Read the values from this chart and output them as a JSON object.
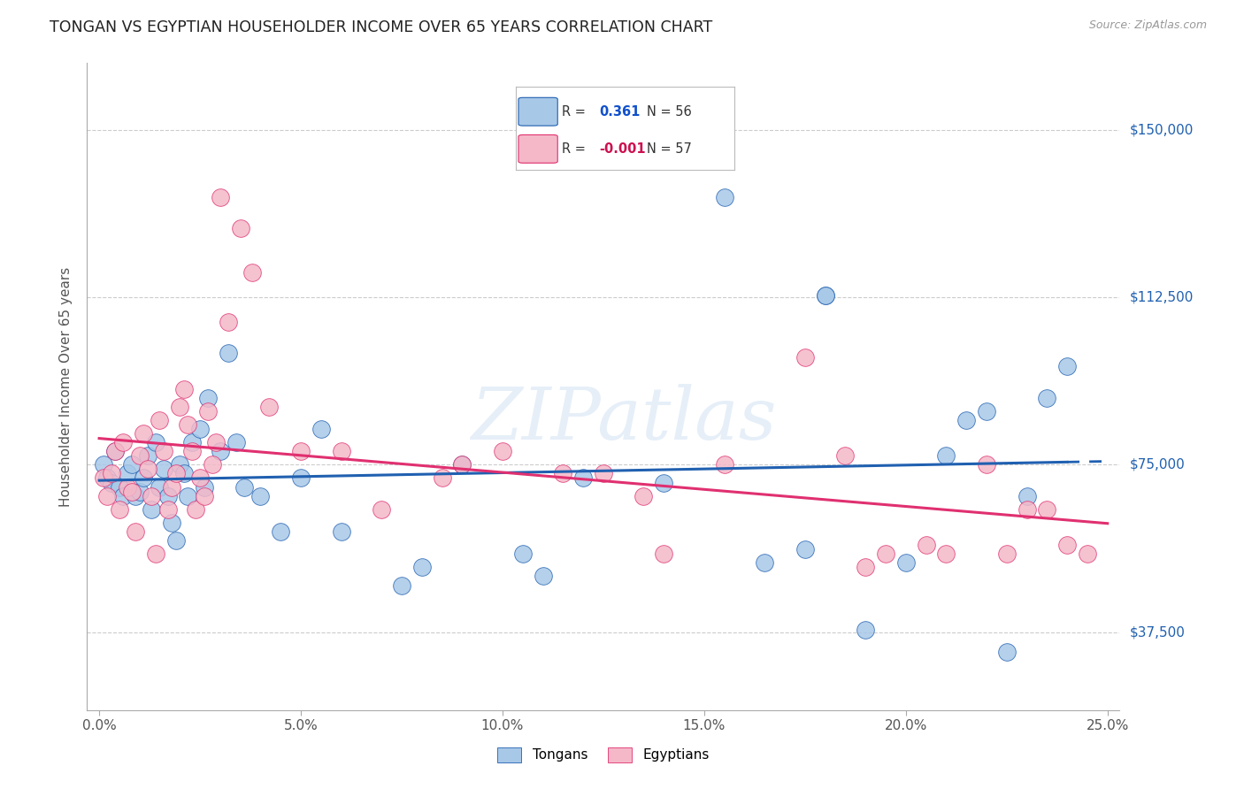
{
  "title": "TONGAN VS EGYPTIAN HOUSEHOLDER INCOME OVER 65 YEARS CORRELATION CHART",
  "source": "Source: ZipAtlas.com",
  "ylabel": "Householder Income Over 65 years",
  "xlabel_ticks": [
    "0.0%",
    "5.0%",
    "10.0%",
    "15.0%",
    "20.0%",
    "25.0%"
  ],
  "xlabel_vals": [
    0.0,
    5.0,
    10.0,
    15.0,
    20.0,
    25.0
  ],
  "ylim": [
    20000,
    165000
  ],
  "xlim": [
    -0.3,
    25.3
  ],
  "yticks": [
    37500,
    75000,
    112500,
    150000
  ],
  "ytick_labels": [
    "$37,500",
    "$75,000",
    "$112,500",
    "$150,000"
  ],
  "tongan_R": "0.361",
  "tongan_N": "56",
  "egyptian_R": "-0.001",
  "egyptian_N": "57",
  "blue_color": "#A8C8E8",
  "pink_color": "#F4B8C8",
  "blue_line_color": "#2060B0",
  "pink_line_color": "#E03070",
  "watermark": "ZIPatlas",
  "tongan_x": [
    0.1,
    0.2,
    0.3,
    0.4,
    0.5,
    0.6,
    0.7,
    0.8,
    0.9,
    1.0,
    1.1,
    1.2,
    1.3,
    1.4,
    1.5,
    1.6,
    1.7,
    1.8,
    1.9,
    2.0,
    2.1,
    2.2,
    2.3,
    2.5,
    2.6,
    2.7,
    3.0,
    3.2,
    3.4,
    3.6,
    4.0,
    4.5,
    5.0,
    5.5,
    6.0,
    7.5,
    8.0,
    9.0,
    10.5,
    11.0,
    12.0,
    14.0,
    15.5,
    16.5,
    17.5,
    18.0,
    18.0,
    19.0,
    20.0,
    21.0,
    21.5,
    22.0,
    22.5,
    23.0,
    23.5,
    24.0
  ],
  "tongan_y": [
    75000,
    72000,
    71000,
    78000,
    70000,
    68000,
    73000,
    75000,
    68000,
    69000,
    72000,
    77000,
    65000,
    80000,
    70000,
    74000,
    68000,
    62000,
    58000,
    75000,
    73000,
    68000,
    80000,
    83000,
    70000,
    90000,
    78000,
    100000,
    80000,
    70000,
    68000,
    60000,
    72000,
    83000,
    60000,
    48000,
    52000,
    75000,
    55000,
    50000,
    72000,
    71000,
    135000,
    53000,
    56000,
    113000,
    113000,
    38000,
    53000,
    77000,
    85000,
    87000,
    33000,
    68000,
    90000,
    97000
  ],
  "egyptian_x": [
    0.1,
    0.2,
    0.3,
    0.4,
    0.5,
    0.6,
    0.7,
    0.8,
    0.9,
    1.0,
    1.1,
    1.2,
    1.3,
    1.4,
    1.5,
    1.6,
    1.7,
    1.8,
    1.9,
    2.0,
    2.1,
    2.2,
    2.3,
    2.4,
    2.5,
    2.6,
    2.7,
    2.8,
    2.9,
    3.0,
    3.2,
    3.5,
    3.8,
    4.2,
    5.0,
    6.0,
    7.0,
    8.5,
    9.0,
    10.0,
    11.5,
    12.5,
    13.5,
    14.0,
    15.5,
    17.5,
    18.5,
    19.0,
    19.5,
    20.5,
    21.0,
    22.0,
    22.5,
    23.0,
    23.5,
    24.0,
    24.5
  ],
  "egyptian_y": [
    72000,
    68000,
    73000,
    78000,
    65000,
    80000,
    70000,
    69000,
    60000,
    77000,
    82000,
    74000,
    68000,
    55000,
    85000,
    78000,
    65000,
    70000,
    73000,
    88000,
    92000,
    84000,
    78000,
    65000,
    72000,
    68000,
    87000,
    75000,
    80000,
    135000,
    107000,
    128000,
    118000,
    88000,
    78000,
    78000,
    65000,
    72000,
    75000,
    78000,
    73000,
    73000,
    68000,
    55000,
    75000,
    99000,
    77000,
    52000,
    55000,
    57000,
    55000,
    75000,
    55000,
    65000,
    65000,
    57000,
    55000
  ]
}
